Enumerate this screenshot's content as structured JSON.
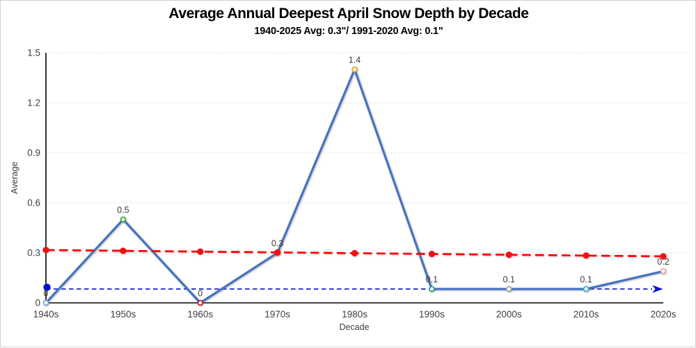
{
  "chart_data": {
    "type": "line",
    "title": "Average Annual Deepest April Snow Depth by Decade",
    "subtitle": "1940-2025 Avg: 0.3\"/ 1991-2020 Avg: 0.1\"",
    "xlabel": "Decade",
    "ylabel": "Average",
    "categories": [
      "1940s",
      "1950s",
      "1960s",
      "1970s",
      "1980s",
      "1990s",
      "2000s",
      "2010s",
      "2020s"
    ],
    "y_ticks": [
      "0",
      "0.3",
      "0.6",
      "0.9",
      "1.2",
      "1.5"
    ],
    "ylim": [
      0,
      1.5
    ],
    "grid": "horizontal-dotted",
    "legend": "none",
    "series": [
      {
        "name": "decade-average",
        "type": "line-with-markers",
        "color": "#4472c4",
        "values": [
          0,
          0.5,
          0,
          0.3,
          1.4,
          0.1,
          0.1,
          0.1,
          0.2
        ],
        "point_labels": [
          "0",
          "0.5",
          "0",
          "0.3",
          "1.4",
          "0.1",
          "0.1",
          "0.1",
          "0.2"
        ],
        "plotted_values": [
          0,
          0.5,
          0,
          0.3,
          1.4,
          0.083,
          0.083,
          0.083,
          0.19
        ],
        "marker_colors": [
          "#7ba2d8",
          "#2fa838",
          "#cc1122",
          "#e03030",
          "#f49b20",
          "#19a08a",
          "#9e9e9e",
          "#35b1c9",
          "#f0a0ae"
        ]
      },
      {
        "name": "linear-trend-1940-2025",
        "type": "dashed-trendline-with-dots",
        "color": "#ff0000",
        "start_value": 0.317,
        "end_value": 0.279
      },
      {
        "name": "reference-average-1991-2020",
        "type": "dashed-reference-line-arrow",
        "color": "#0010d0",
        "value": 0.083
      }
    ]
  }
}
